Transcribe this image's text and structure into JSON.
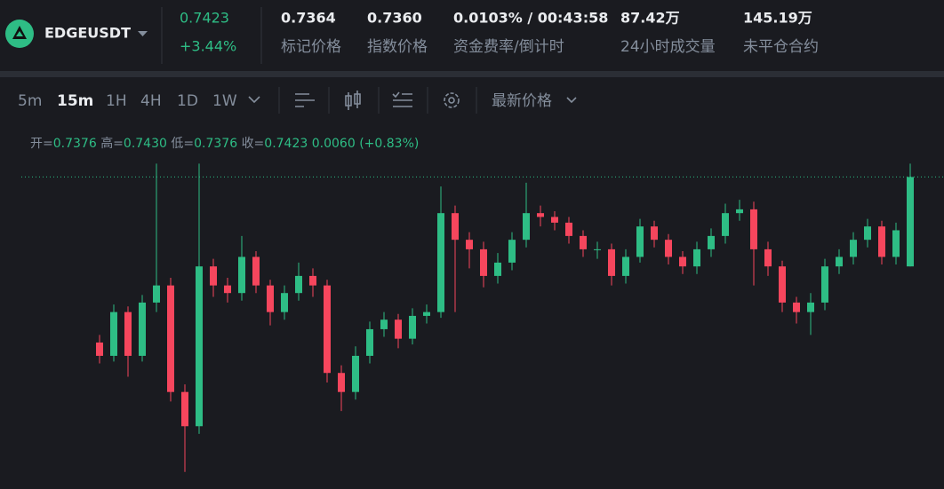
{
  "header": {
    "symbol": "EDGEUSDT",
    "last_price": "0.7423",
    "change": "+3.44%",
    "stats": [
      {
        "value": "0.7364",
        "label": "标记价格"
      },
      {
        "value": "0.7360",
        "label": "指数价格"
      },
      {
        "value": "0.0103% / 00:43:58",
        "label": "资金费率/倒计时"
      },
      {
        "value": "87.42万",
        "label": "24小时成交量"
      },
      {
        "value": "145.19万",
        "label": "未平仓合约"
      }
    ]
  },
  "toolbar": {
    "intervals": [
      "5m",
      "15m",
      "1H",
      "4H",
      "1D",
      "1W"
    ],
    "active_interval": "15m",
    "price_type": "最新价格"
  },
  "ohlc": {
    "open_label": "开=",
    "open": "0.7376",
    "high_label": "高=",
    "high": "0.7430",
    "low_label": "低=",
    "low": "0.7376",
    "close_label": "收=",
    "close": "0.7423",
    "change": "0.0060",
    "change_pct": "(+0.83%)"
  },
  "chart_data": {
    "type": "candlestick",
    "ylim": [
      0.7259,
      0.7433
    ],
    "up_color": "#2ebd85",
    "down_color": "#f6465d",
    "candles": [
      [
        0.7336,
        0.734,
        0.7325,
        0.7329
      ],
      [
        0.7329,
        0.7356,
        0.7326,
        0.7352
      ],
      [
        0.7352,
        0.7355,
        0.7318,
        0.7329
      ],
      [
        0.7329,
        0.7361,
        0.7326,
        0.7357
      ],
      [
        0.7357,
        0.743,
        0.7352,
        0.7366
      ],
      [
        0.7366,
        0.737,
        0.7305,
        0.731
      ],
      [
        0.731,
        0.7314,
        0.7268,
        0.7292
      ],
      [
        0.7292,
        0.743,
        0.7288,
        0.7376
      ],
      [
        0.7376,
        0.738,
        0.736,
        0.7366
      ],
      [
        0.7366,
        0.737,
        0.7357,
        0.7362
      ],
      [
        0.7362,
        0.7392,
        0.7358,
        0.7381
      ],
      [
        0.7381,
        0.7384,
        0.7362,
        0.7366
      ],
      [
        0.7366,
        0.7369,
        0.7345,
        0.7352
      ],
      [
        0.7352,
        0.7366,
        0.7348,
        0.7362
      ],
      [
        0.7362,
        0.7378,
        0.7358,
        0.7371
      ],
      [
        0.7371,
        0.7375,
        0.736,
        0.7366
      ],
      [
        0.7366,
        0.7369,
        0.7315,
        0.732
      ],
      [
        0.732,
        0.7324,
        0.73,
        0.731
      ],
      [
        0.731,
        0.7334,
        0.7306,
        0.7329
      ],
      [
        0.7329,
        0.7347,
        0.7325,
        0.7343
      ],
      [
        0.7343,
        0.7352,
        0.7339,
        0.7348
      ],
      [
        0.7348,
        0.7351,
        0.7333,
        0.7338
      ],
      [
        0.7338,
        0.7354,
        0.7335,
        0.735
      ],
      [
        0.735,
        0.7356,
        0.7346,
        0.7352
      ],
      [
        0.7352,
        0.7418,
        0.7349,
        0.7404
      ],
      [
        0.7404,
        0.7408,
        0.7352,
        0.739
      ],
      [
        0.739,
        0.7394,
        0.7375,
        0.7385
      ],
      [
        0.7385,
        0.7389,
        0.7365,
        0.7371
      ],
      [
        0.7371,
        0.7383,
        0.7367,
        0.7378
      ],
      [
        0.7378,
        0.7394,
        0.7374,
        0.739
      ],
      [
        0.739,
        0.742,
        0.7386,
        0.7404
      ],
      [
        0.7404,
        0.7408,
        0.7397,
        0.7402
      ],
      [
        0.7402,
        0.7405,
        0.7395,
        0.7399
      ],
      [
        0.7399,
        0.7402,
        0.7388,
        0.7392
      ],
      [
        0.7392,
        0.7395,
        0.7381,
        0.7385
      ],
      [
        0.7385,
        0.7389,
        0.738,
        0.7385
      ],
      [
        0.7385,
        0.7388,
        0.7366,
        0.7371
      ],
      [
        0.7371,
        0.7385,
        0.7367,
        0.7381
      ],
      [
        0.7381,
        0.7401,
        0.7378,
        0.7397
      ],
      [
        0.7397,
        0.74,
        0.7386,
        0.739
      ],
      [
        0.739,
        0.7393,
        0.7377,
        0.7381
      ],
      [
        0.7381,
        0.7384,
        0.7372,
        0.7376
      ],
      [
        0.7376,
        0.7389,
        0.7372,
        0.7385
      ],
      [
        0.7385,
        0.7396,
        0.7381,
        0.7392
      ],
      [
        0.7392,
        0.7409,
        0.7388,
        0.7404
      ],
      [
        0.7404,
        0.7411,
        0.74,
        0.7406
      ],
      [
        0.7406,
        0.741,
        0.7366,
        0.7385
      ],
      [
        0.7385,
        0.7389,
        0.7371,
        0.7376
      ],
      [
        0.7376,
        0.7379,
        0.7352,
        0.7357
      ],
      [
        0.7357,
        0.736,
        0.7346,
        0.7352
      ],
      [
        0.7352,
        0.7362,
        0.734,
        0.7357
      ],
      [
        0.7357,
        0.738,
        0.7353,
        0.7376
      ],
      [
        0.7376,
        0.7385,
        0.7372,
        0.7381
      ],
      [
        0.7381,
        0.7394,
        0.7377,
        0.739
      ],
      [
        0.739,
        0.7401,
        0.7386,
        0.7397
      ],
      [
        0.7397,
        0.74,
        0.7377,
        0.7381
      ],
      [
        0.7381,
        0.7399,
        0.7377,
        0.7395
      ],
      [
        0.7376,
        0.743,
        0.7376,
        0.7423
      ]
    ]
  }
}
